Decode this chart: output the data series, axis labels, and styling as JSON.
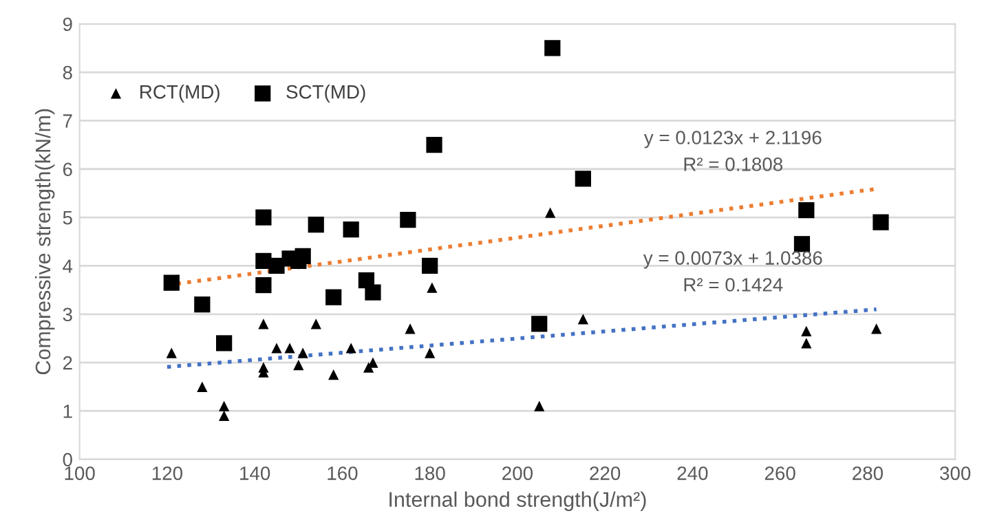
{
  "chart_data": {
    "type": "scatter",
    "xlabel": "Internal bond strength(J/m²)",
    "ylabel": "Compressive strength(kN/m)",
    "xlim": [
      100,
      300
    ],
    "xticks": [
      100,
      120,
      140,
      160,
      180,
      200,
      220,
      240,
      260,
      280,
      300
    ],
    "ylim": [
      0,
      9
    ],
    "yticks": [
      0,
      1,
      2,
      3,
      4,
      5,
      6,
      7,
      8,
      9
    ],
    "grid": "y",
    "legend": "top left",
    "series": [
      {
        "name": "RCT(MD)",
        "color": "#000000",
        "marker": "triangle",
        "x": [
          121,
          128,
          133,
          133,
          142,
          142,
          142,
          145,
          148,
          151,
          150,
          154,
          158,
          162,
          166,
          167,
          175.5,
          180,
          180.5,
          205,
          207.5,
          215,
          266,
          266,
          282
        ],
        "values": [
          2.2,
          1.5,
          1.1,
          0.9,
          2.8,
          1.9,
          1.8,
          2.3,
          2.3,
          2.2,
          1.95,
          2.8,
          1.75,
          2.3,
          1.9,
          2.0,
          2.7,
          2.2,
          3.55,
          1.1,
          5.1,
          2.9,
          2.65,
          2.4,
          2.7
        ]
      },
      {
        "name": "SCT(MD)",
        "color": "#000000",
        "marker": "square",
        "x": [
          121,
          128,
          133,
          142,
          142,
          142,
          145,
          148,
          150,
          151,
          154,
          158,
          162,
          165.5,
          167,
          175,
          180,
          181,
          205,
          208,
          215,
          266,
          265,
          283
        ],
        "values": [
          3.65,
          3.2,
          2.4,
          5.0,
          4.1,
          3.6,
          4.0,
          4.15,
          4.1,
          4.2,
          4.85,
          3.35,
          4.75,
          3.7,
          3.45,
          4.95,
          4.0,
          6.5,
          2.8,
          8.5,
          5.8,
          5.15,
          4.45,
          4.9
        ]
      },
      {
        "type": "line",
        "color": "#4472c4",
        "line_style": "dotted",
        "marker": "none",
        "x": [
          120,
          282
        ],
        "values": [
          1.91,
          3.1
        ]
      },
      {
        "type": "line",
        "color": "#ed7d31",
        "line_style": "dotted",
        "marker": "none",
        "x": [
          120,
          282
        ],
        "values": [
          3.6,
          5.59
        ]
      }
    ],
    "annotations": [
      "y = 0.0123x + 2.1196",
      "R² = 0.1808",
      "y = 0.0073x + 1.0386",
      "R² = 0.1424"
    ]
  }
}
